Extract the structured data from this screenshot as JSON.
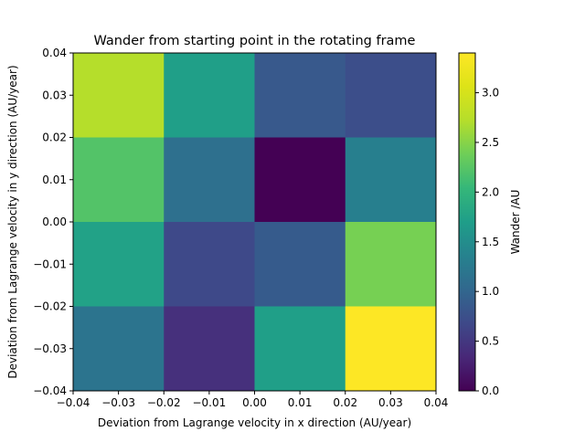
{
  "chart_data": {
    "type": "heatmap",
    "title": "Wander from starting point in the rotating frame",
    "xlabel": "Deviation from Lagrange velocity in x direction (AU/year)",
    "ylabel": "Deviation from Lagrange velocity in y direction (AU/year)",
    "xlim": [
      -0.04,
      0.04
    ],
    "ylim": [
      -0.04,
      0.04
    ],
    "x_edges": [
      -0.04,
      -0.02,
      0.0,
      0.02,
      0.04
    ],
    "y_edges": [
      -0.04,
      -0.02,
      0.0,
      0.02,
      0.04
    ],
    "x_ticks": [
      "−0.04",
      "−0.03",
      "−0.02",
      "−0.01",
      "0.00",
      "0.01",
      "0.02",
      "0.03",
      "0.04"
    ],
    "y_ticks": [
      "−0.04",
      "−0.03",
      "−0.02",
      "−0.01",
      "0.00",
      "0.01",
      "0.02",
      "0.03",
      "0.04"
    ],
    "values_rows_top_to_bottom": [
      [
        2.72,
        1.72,
        0.85,
        0.73
      ],
      [
        2.22,
        1.12,
        0.0,
        1.32
      ],
      [
        1.75,
        0.68,
        0.88,
        2.42
      ],
      [
        1.18,
        0.42,
        1.72,
        3.4
      ]
    ],
    "colormap": "viridis",
    "colorbar": {
      "label": "Wander /AU",
      "vmin": 0.0,
      "vmax": 3.4,
      "ticks": [
        "0.0",
        "0.5",
        "1.0",
        "1.5",
        "2.0",
        "2.5",
        "3.0"
      ]
    },
    "grid": false
  }
}
